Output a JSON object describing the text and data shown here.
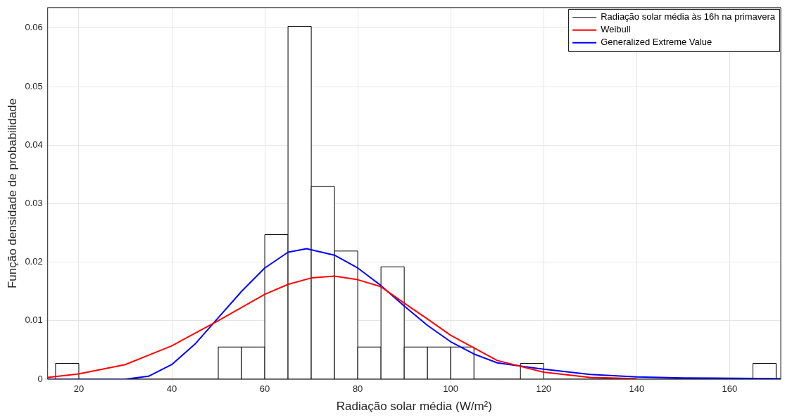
{
  "chart_data": {
    "type": "histogram",
    "xlabel": "Radiação solar média (W/m²)",
    "ylabel": "Função densidade de probabilidade",
    "series": [
      {
        "name": "Radiação solar média às 16h na primavera",
        "color": "#000000",
        "bins": [
          15,
          20,
          25,
          30,
          35,
          40,
          45,
          50,
          55,
          60,
          65,
          70,
          75,
          80,
          85,
          90,
          95,
          100,
          105,
          110,
          115,
          120,
          125,
          130,
          135,
          140,
          145,
          150,
          155,
          160,
          165,
          170
        ],
        "values": [
          0.0027,
          0,
          0,
          0,
          0,
          0,
          0,
          0.0055,
          0.0055,
          0.0247,
          0.0603,
          0.0329,
          0.0219,
          0.0055,
          0.0192,
          0.0055,
          0.0055,
          0.0055,
          0,
          0,
          0.0027,
          0,
          0,
          0,
          0,
          0,
          0,
          0,
          0,
          0,
          0.0027
        ]
      },
      {
        "name": "Weibull",
        "type": "line",
        "color": "#ff0000",
        "x": [
          13.3,
          20,
          30,
          40,
          50,
          60,
          65,
          70,
          75,
          80,
          85,
          90,
          95,
          100,
          110,
          120,
          130,
          140
        ],
        "values": [
          0.0003,
          0.0009,
          0.0025,
          0.0057,
          0.01,
          0.0145,
          0.0162,
          0.0173,
          0.0176,
          0.017,
          0.0158,
          0.013,
          0.0103,
          0.0075,
          0.0032,
          0.0012,
          0.0003,
          0.0001
        ]
      },
      {
        "name": "Generalized Extreme Value",
        "type": "line",
        "color": "#0000ff",
        "x": [
          13.3,
          30,
          35,
          40,
          45,
          50,
          55,
          60,
          65,
          69,
          75,
          80,
          85,
          90,
          95,
          100,
          105,
          110,
          120,
          130,
          140,
          150,
          171
        ],
        "values": [
          0,
          0,
          0.0005,
          0.0025,
          0.006,
          0.0105,
          0.015,
          0.019,
          0.0217,
          0.0223,
          0.0212,
          0.019,
          0.016,
          0.0125,
          0.0092,
          0.0064,
          0.0043,
          0.0028,
          0.0017,
          0.0008,
          0.0004,
          0.0002,
          0.0001
        ]
      }
    ],
    "xlim": [
      13.3,
      171
    ],
    "ylim": [
      0,
      0.0635
    ],
    "xticks": [
      20,
      40,
      60,
      80,
      100,
      120,
      140,
      160
    ],
    "yticks": [
      0,
      0.01,
      0.02,
      0.03,
      0.04,
      0.05,
      0.06
    ],
    "grid": true,
    "legend": "top right"
  }
}
